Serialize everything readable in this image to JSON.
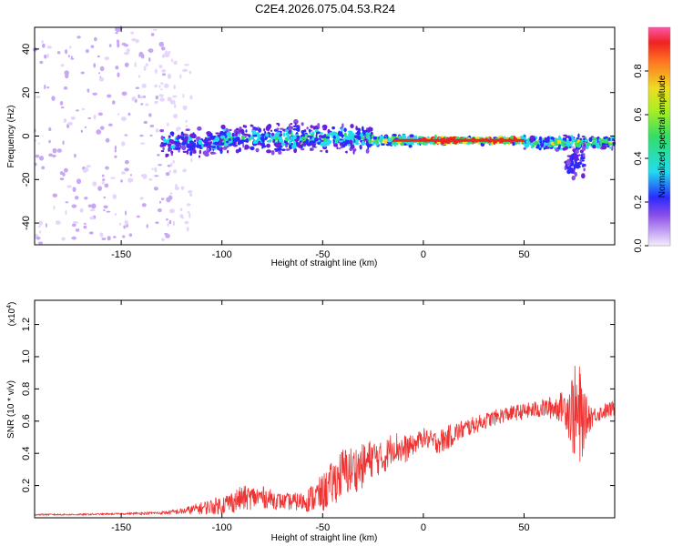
{
  "title": "C2E4.2026.075.04.53.R24",
  "colors": {
    "snr_line": "#ee3333",
    "spectro_bg": "#ffffff",
    "faint": "#e6d6fb",
    "purple_light": "#c8a8f5",
    "purple": "#8a4de8",
    "violet": "#6a1fd8",
    "blue": "#2a2aff",
    "cyan": "#22ddee",
    "green": "#33dd66",
    "yellow": "#eedd22",
    "red": "#ee2222"
  },
  "chart_data": [
    {
      "type": "heatmap",
      "xlabel": "Height of straight line (km)",
      "ylabel": "Frequency (Hz)",
      "xlim": [
        -193,
        95
      ],
      "ylim": [
        -50,
        50
      ],
      "x_ticks": [
        "-150",
        "-100",
        "-50",
        "0",
        "50"
      ],
      "x_tick_values": [
        -150,
        -100,
        -50,
        0,
        50
      ],
      "y_ticks": [
        "-40",
        "-20",
        "0",
        "20",
        "40"
      ],
      "y_tick_values": [
        -40,
        -20,
        0,
        20,
        40
      ],
      "colorbar": {
        "label": "Normalized spectral amplitude",
        "range": [
          0,
          1
        ],
        "ticks": [
          "0.0",
          "0.2",
          "0.4",
          "0.6",
          "0.8"
        ],
        "tick_values": [
          0.0,
          0.2,
          0.4,
          0.6,
          0.8
        ]
      },
      "bands": [
        {
          "x_start": -193,
          "x_end": -125,
          "center": 0,
          "halfwidth": 50,
          "amplitude": 0.08
        },
        {
          "x_start": -130,
          "x_end": -115,
          "center": -5,
          "halfwidth": 45,
          "amplitude": 0.03
        },
        {
          "x_start": -130,
          "x_end": -100,
          "center": -3,
          "halfwidth": 8,
          "amplitude": 0.35
        },
        {
          "x_start": -100,
          "x_end": -60,
          "center": -1,
          "halfwidth": 9,
          "amplitude": 0.4
        },
        {
          "x_start": -60,
          "x_end": -25,
          "center": -1,
          "halfwidth": 8,
          "amplitude": 0.42
        },
        {
          "x_start": -25,
          "x_end": 0,
          "center": -2,
          "halfwidth": 3,
          "amplitude": 0.6
        },
        {
          "x_start": 0,
          "x_end": 50,
          "center": -2,
          "halfwidth": 2,
          "amplitude": 0.9
        },
        {
          "x_start": 50,
          "x_end": 95,
          "center": -3,
          "halfwidth": 4,
          "amplitude": 0.55
        },
        {
          "x_start": 70,
          "x_end": 80,
          "center": -12,
          "halfwidth": 10,
          "amplitude": 0.3
        }
      ]
    },
    {
      "type": "line",
      "xlabel": "Height of straight line (km)",
      "ylabel": "SNR (10 * v/v)",
      "y_multiplier": "(x10",
      "y_multiplier_exp": "4",
      "y_multiplier_close": ")",
      "xlim": [
        -193,
        95
      ],
      "ylim": [
        0,
        1.35
      ],
      "x_ticks": [
        "-150",
        "-100",
        "-50",
        "0",
        "50"
      ],
      "x_tick_values": [
        -150,
        -100,
        -50,
        0,
        50
      ],
      "y_ticks": [
        "0.2",
        "0.4",
        "0.6",
        "0.8",
        "1.0",
        "1.2"
      ],
      "y_tick_values": [
        0.2,
        0.4,
        0.6,
        0.8,
        1.0,
        1.2
      ],
      "series": [
        {
          "x": [
            -193,
            -170,
            -150,
            -130,
            -120,
            -110,
            -100,
            -90,
            -80,
            -70,
            -60,
            -50,
            -40,
            -30,
            -25,
            -20,
            -15,
            -10,
            -5,
            0,
            5,
            10,
            15,
            20,
            30,
            40,
            50,
            60,
            70,
            75,
            78,
            80,
            85,
            90,
            95
          ],
          "y": [
            0.02,
            0.02,
            0.025,
            0.03,
            0.04,
            0.06,
            0.08,
            0.12,
            0.13,
            0.1,
            0.1,
            0.15,
            0.28,
            0.32,
            0.38,
            0.36,
            0.45,
            0.42,
            0.45,
            0.5,
            0.47,
            0.48,
            0.52,
            0.55,
            0.6,
            0.64,
            0.66,
            0.68,
            0.69,
            0.65,
            0.6,
            0.62,
            0.64,
            0.66,
            0.68
          ],
          "noise": [
            0.005,
            0.005,
            0.005,
            0.01,
            0.02,
            0.04,
            0.06,
            0.08,
            0.07,
            0.05,
            0.06,
            0.12,
            0.16,
            0.14,
            0.12,
            0.1,
            0.1,
            0.1,
            0.06,
            0.06,
            0.07,
            0.08,
            0.07,
            0.06,
            0.05,
            0.05,
            0.05,
            0.06,
            0.1,
            0.3,
            0.35,
            0.15,
            0.05,
            0.05,
            0.05
          ]
        }
      ]
    }
  ]
}
